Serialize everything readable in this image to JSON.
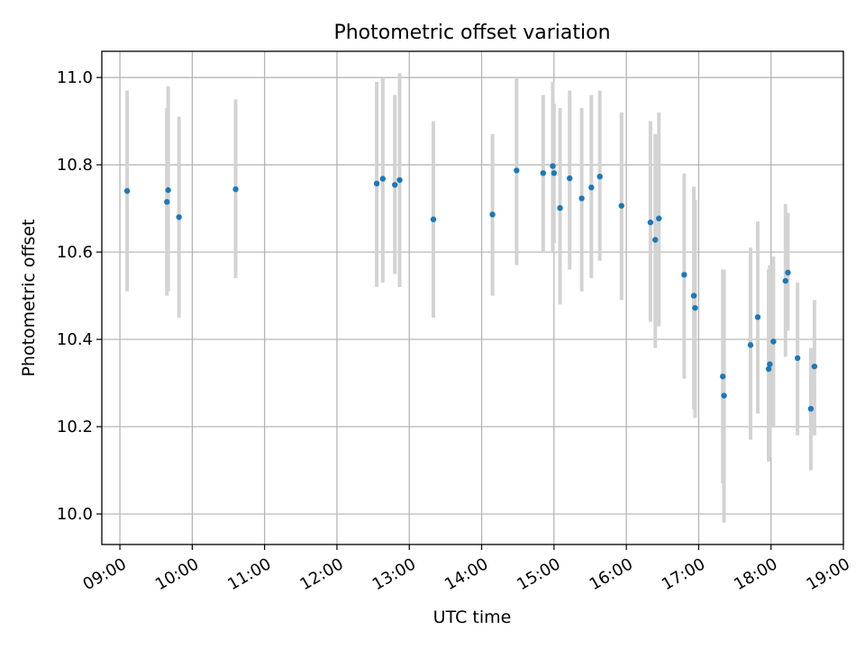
{
  "chart_data": {
    "type": "scatter",
    "title": "Photometric offset variation",
    "xlabel": "UTC time",
    "ylabel": "Photometric offset",
    "xlim": [
      "08:45",
      "19:00"
    ],
    "ylim": [
      9.93,
      11.06
    ],
    "grid": true,
    "x_ticks": [
      "09:00",
      "10:00",
      "11:00",
      "12:00",
      "13:00",
      "14:00",
      "15:00",
      "16:00",
      "17:00",
      "18:00",
      "19:00"
    ],
    "y_ticks": [
      "10.0",
      "10.2",
      "10.4",
      "10.6",
      "10.8",
      "11.0"
    ],
    "point_color": "#1f77b4",
    "error_bar_color": "#d3d3d3",
    "points": [
      {
        "t": "09:06",
        "y": 10.74,
        "lo": 10.51,
        "hi": 10.97
      },
      {
        "t": "09:39",
        "y": 10.715,
        "lo": 10.5,
        "hi": 10.93
      },
      {
        "t": "09:40",
        "y": 10.742,
        "lo": 10.51,
        "hi": 10.98
      },
      {
        "t": "09:49",
        "y": 10.68,
        "lo": 10.45,
        "hi": 10.91
      },
      {
        "t": "10:36",
        "y": 10.744,
        "lo": 10.54,
        "hi": 10.95
      },
      {
        "t": "12:33",
        "y": 10.757,
        "lo": 10.52,
        "hi": 10.99
      },
      {
        "t": "12:38",
        "y": 10.768,
        "lo": 10.53,
        "hi": 11.0
      },
      {
        "t": "12:48",
        "y": 10.754,
        "lo": 10.55,
        "hi": 10.96
      },
      {
        "t": "12:52",
        "y": 10.765,
        "lo": 10.52,
        "hi": 11.01
      },
      {
        "t": "13:20",
        "y": 10.675,
        "lo": 10.45,
        "hi": 10.9
      },
      {
        "t": "14:09",
        "y": 10.686,
        "lo": 10.5,
        "hi": 10.87
      },
      {
        "t": "14:29",
        "y": 10.787,
        "lo": 10.57,
        "hi": 11.0
      },
      {
        "t": "14:51",
        "y": 10.781,
        "lo": 10.6,
        "hi": 10.96
      },
      {
        "t": "14:59",
        "y": 10.797,
        "lo": 10.6,
        "hi": 10.99
      },
      {
        "t": "15:00",
        "y": 10.781,
        "lo": 10.62,
        "hi": 10.94
      },
      {
        "t": "15:05",
        "y": 10.701,
        "lo": 10.48,
        "hi": 10.93
      },
      {
        "t": "15:13",
        "y": 10.769,
        "lo": 10.56,
        "hi": 10.97
      },
      {
        "t": "15:23",
        "y": 10.723,
        "lo": 10.51,
        "hi": 10.93
      },
      {
        "t": "15:31",
        "y": 10.748,
        "lo": 10.54,
        "hi": 10.96
      },
      {
        "t": "15:38",
        "y": 10.773,
        "lo": 10.58,
        "hi": 10.97
      },
      {
        "t": "15:56",
        "y": 10.706,
        "lo": 10.49,
        "hi": 10.92
      },
      {
        "t": "16:20",
        "y": 10.668,
        "lo": 10.44,
        "hi": 10.9
      },
      {
        "t": "16:24",
        "y": 10.628,
        "lo": 10.38,
        "hi": 10.87
      },
      {
        "t": "16:27",
        "y": 10.677,
        "lo": 10.43,
        "hi": 10.92
      },
      {
        "t": "16:48",
        "y": 10.548,
        "lo": 10.31,
        "hi": 10.78
      },
      {
        "t": "16:56",
        "y": 10.5,
        "lo": 10.24,
        "hi": 10.75
      },
      {
        "t": "16:57",
        "y": 10.472,
        "lo": 10.22,
        "hi": 10.72
      },
      {
        "t": "17:20",
        "y": 10.315,
        "lo": 10.07,
        "hi": 10.56
      },
      {
        "t": "17:21",
        "y": 10.271,
        "lo": 9.98,
        "hi": 10.56
      },
      {
        "t": "17:43",
        "y": 10.387,
        "lo": 10.17,
        "hi": 10.61
      },
      {
        "t": "17:49",
        "y": 10.451,
        "lo": 10.23,
        "hi": 10.67
      },
      {
        "t": "17:58",
        "y": 10.332,
        "lo": 10.12,
        "hi": 10.56
      },
      {
        "t": "17:59",
        "y": 10.343,
        "lo": 10.13,
        "hi": 10.57
      },
      {
        "t": "18:02",
        "y": 10.395,
        "lo": 10.2,
        "hi": 10.59
      },
      {
        "t": "18:12",
        "y": 10.534,
        "lo": 10.36,
        "hi": 10.71
      },
      {
        "t": "18:14",
        "y": 10.553,
        "lo": 10.42,
        "hi": 10.69
      },
      {
        "t": "18:22",
        "y": 10.357,
        "lo": 10.18,
        "hi": 10.53
      },
      {
        "t": "18:33",
        "y": 10.241,
        "lo": 10.1,
        "hi": 10.38
      },
      {
        "t": "18:36",
        "y": 10.338,
        "lo": 10.18,
        "hi": 10.49
      }
    ]
  }
}
